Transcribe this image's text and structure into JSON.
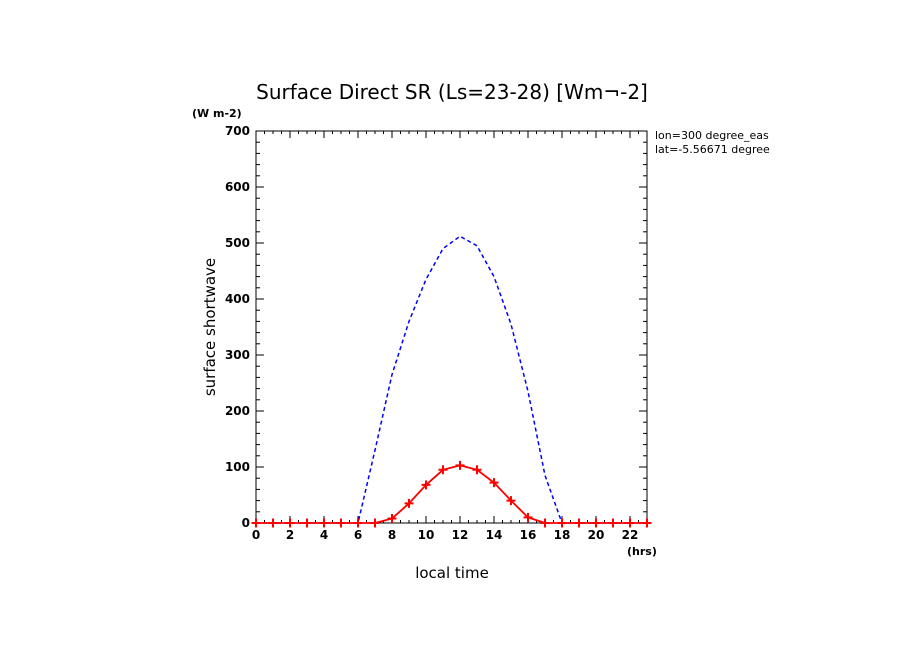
{
  "chart_data": {
    "type": "line",
    "title": "Surface Direct SR (Ls=23-28) [Wm¬-2]",
    "units_label": "(W m-2)",
    "ylabel": "surface shortwave",
    "xlabel": "local time",
    "xunits": "(hrs)",
    "annotations": [
      "lon=300 degree_eas",
      "lat=-5.56671 degree"
    ],
    "xlim": [
      0,
      23
    ],
    "ylim": [
      0,
      700
    ],
    "xticks": [
      0,
      2,
      4,
      6,
      8,
      10,
      12,
      14,
      16,
      18,
      20,
      22
    ],
    "yticks": [
      0,
      100,
      200,
      300,
      400,
      500,
      600,
      700
    ],
    "x": [
      0,
      1,
      2,
      3,
      4,
      5,
      6,
      7,
      8,
      9,
      10,
      11,
      12,
      13,
      14,
      15,
      16,
      17,
      18,
      19,
      20,
      21,
      22,
      23
    ],
    "series": [
      {
        "color": "#0000ff",
        "style": "dashed",
        "values": [
          0,
          0,
          0,
          0,
          0,
          0,
          0,
          130,
          265,
          360,
          435,
          490,
          512,
          495,
          440,
          355,
          235,
          85,
          0,
          0,
          0,
          0,
          0,
          0
        ]
      },
      {
        "color": "#ff0000",
        "style": "solid",
        "marker": "plus",
        "values": [
          0,
          0,
          0,
          0,
          0,
          0,
          0,
          0,
          8,
          35,
          68,
          95,
          103,
          95,
          72,
          40,
          10,
          0,
          0,
          0,
          0,
          0,
          0,
          0
        ]
      }
    ]
  }
}
